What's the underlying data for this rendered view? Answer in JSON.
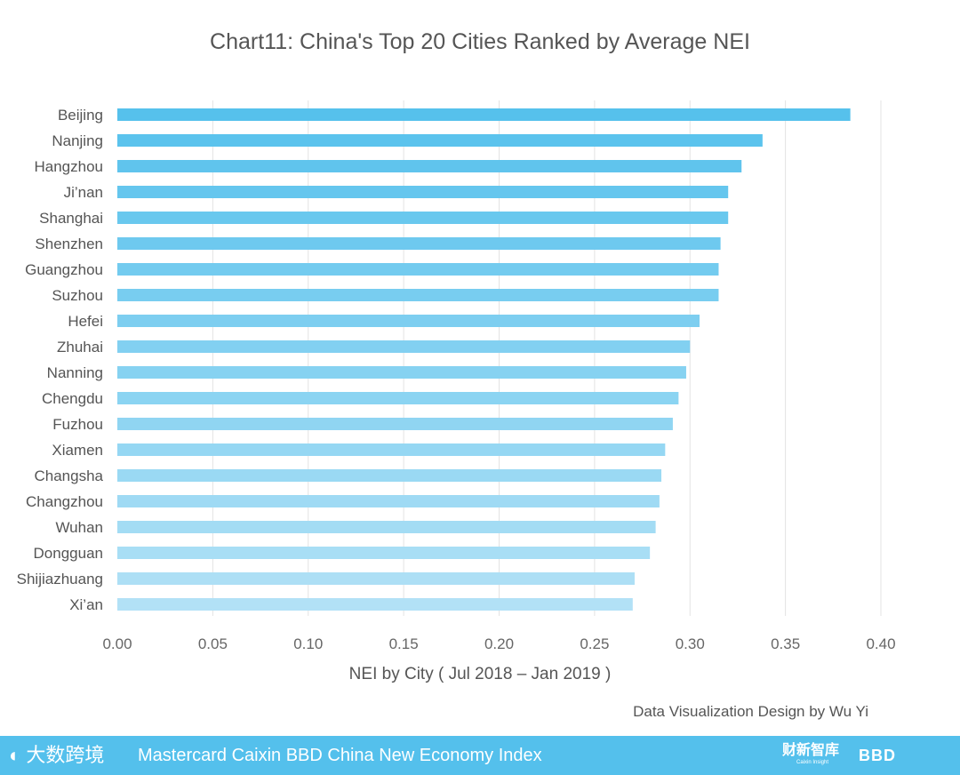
{
  "chart_data": {
    "type": "bar",
    "orientation": "horizontal",
    "title": "Chart11:  China's Top 20 Cities Ranked by Average NEI",
    "xlabel": "NEI by City ( Jul 2018 – Jan 2019 )",
    "ylabel": "",
    "xlim": [
      0,
      0.4
    ],
    "ticks": [
      "0.00",
      "0.05",
      "0.10",
      "0.15",
      "0.20",
      "0.25",
      "0.30",
      "0.35",
      "0.40"
    ],
    "tick_values": [
      0,
      0.05,
      0.1,
      0.15,
      0.2,
      0.25,
      0.3,
      0.35,
      0.4
    ],
    "grid": true,
    "categories": [
      "Beijing",
      "Nanjing",
      "Hangzhou",
      "Ji’nan",
      "Shanghai",
      "Shenzhen",
      "Guangzhou",
      "Suzhou",
      "Hefei",
      "Zhuhai",
      "Nanning",
      "Chengdu",
      "Fuzhou",
      "Xiamen",
      "Changsha",
      "Changzhou",
      "Wuhan",
      "Dongguan",
      "Shijiazhuang",
      "Xi’an"
    ],
    "values": [
      0.384,
      0.338,
      0.327,
      0.32,
      0.32,
      0.316,
      0.315,
      0.315,
      0.305,
      0.3,
      0.298,
      0.294,
      0.291,
      0.287,
      0.285,
      0.284,
      0.282,
      0.279,
      0.271,
      0.27
    ],
    "bar_color_top": "#56c1ec",
    "bar_color_bottom": "#b2e1f6"
  },
  "credit": "Data Visualization Design by Wu Yi",
  "footer": {
    "title": "Mastercard Caixin BBD China New Economy Index",
    "logo_left": "大数跨境",
    "logo_caixin": "财新智库",
    "logo_caixin_sub": "Caixin Insight",
    "logo_bbd": "BBD",
    "band_color": "#54c0ec"
  }
}
